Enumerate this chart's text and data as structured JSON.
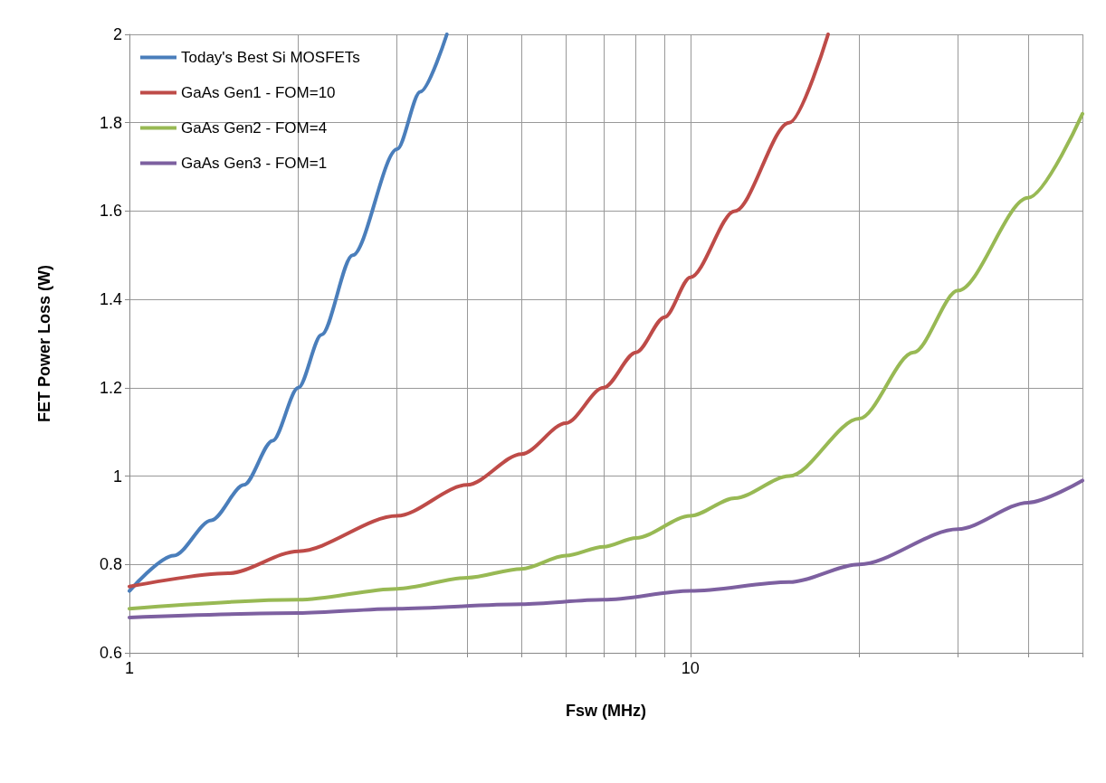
{
  "chart_data": {
    "type": "line",
    "xlabel": "Fsw (MHz)",
    "ylabel": "FET Power Loss (W)",
    "log": "x",
    "xlim": [
      1,
      50
    ],
    "xticks": [
      1,
      {
        "value": 2,
        "label": null
      },
      {
        "value": 3,
        "label": null
      },
      {
        "value": 4,
        "label": null
      },
      {
        "value": 5,
        "label": null
      },
      {
        "value": 6,
        "label": null
      },
      {
        "value": 7,
        "label": null
      },
      {
        "value": 8,
        "label": null
      },
      {
        "value": 9,
        "label": null
      },
      10,
      {
        "value": 20,
        "label": null
      },
      {
        "value": 30,
        "label": null
      },
      {
        "value": 40,
        "label": null
      },
      {
        "value": 50,
        "label": null
      }
    ],
    "ylim": [
      0.6,
      2
    ],
    "yticks": [
      0.6,
      0.8,
      1,
      1.2,
      1.4,
      1.6,
      1.8,
      2
    ],
    "grid": true,
    "legend": "top left",
    "marker": "none",
    "line_style": "solid",
    "series": [
      {
        "name": "Today's Best Si MOSFETs",
        "color": "#4a7ebb",
        "x": [
          1,
          1.2,
          1.4,
          1.6,
          1.8,
          2,
          2.2,
          2.5,
          3,
          3.3,
          3.68
        ],
        "values": [
          0.74,
          0.82,
          0.9,
          0.98,
          1.08,
          1.2,
          1.32,
          1.5,
          1.74,
          1.87,
          2
        ]
      },
      {
        "name": "GaAs Gen1 - FOM=10",
        "color": "#be4b48",
        "x": [
          1,
          1.5,
          2,
          3,
          4,
          5,
          6,
          7,
          8,
          9,
          10,
          12,
          15,
          17.6
        ],
        "values": [
          0.75,
          0.78,
          0.83,
          0.91,
          0.98,
          1.05,
          1.12,
          1.2,
          1.28,
          1.36,
          1.45,
          1.6,
          1.8,
          2
        ]
      },
      {
        "name": "GaAs Gen2 - FOM=4",
        "color": "#98b954",
        "x": [
          1,
          2,
          3,
          4,
          5,
          6,
          7,
          8,
          10,
          12,
          15,
          20,
          25,
          30,
          40,
          50
        ],
        "values": [
          0.7,
          0.72,
          0.745,
          0.77,
          0.79,
          0.82,
          0.84,
          0.86,
          0.91,
          0.95,
          1,
          1.13,
          1.28,
          1.42,
          1.63,
          1.82
        ]
      },
      {
        "name": "GaAs Gen3 - FOM=1",
        "color": "#7d60a0",
        "x": [
          1,
          2,
          3,
          5,
          7,
          10,
          15,
          20,
          30,
          40,
          50
        ],
        "values": [
          0.68,
          0.69,
          0.7,
          0.71,
          0.72,
          0.74,
          0.76,
          0.8,
          0.88,
          0.94,
          0.99
        ]
      }
    ]
  }
}
